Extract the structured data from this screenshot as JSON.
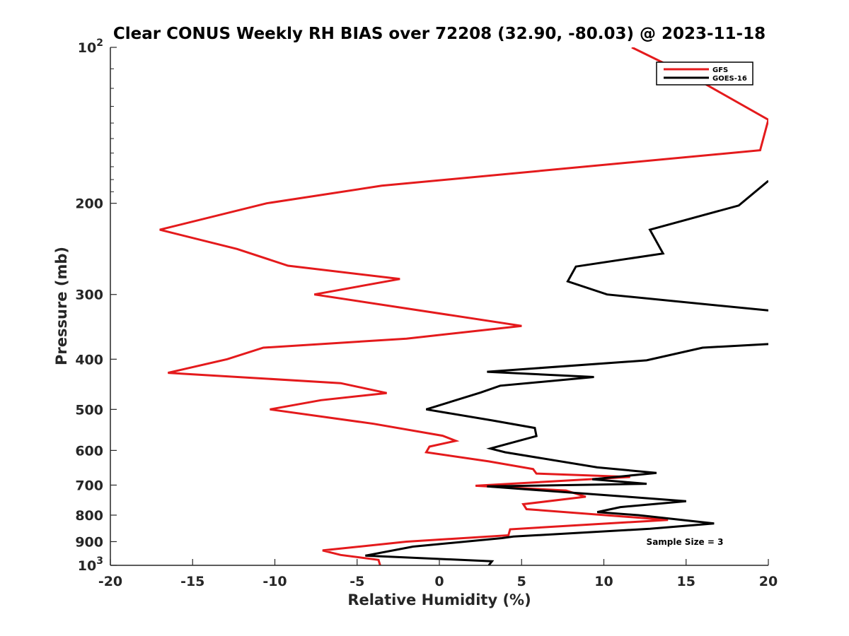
{
  "chart_data": {
    "type": "line",
    "title": "Clear CONUS Weekly RH BIAS over 72208 (32.90, -80.03) @ 2023-11-18",
    "xlabel": "Relative Humidity (%)",
    "ylabel": "Pressure (mb)",
    "xlim": [
      -20,
      20
    ],
    "ylim": [
      100,
      1000
    ],
    "y_scale": "log",
    "y_reversed": true,
    "x_ticks": [
      "-20",
      "-15",
      "-10",
      "-5",
      "0",
      "5",
      "10",
      "15",
      "20"
    ],
    "y_ticks": [
      {
        "value": 100,
        "label": "10",
        "sup": "2"
      },
      {
        "value": 200,
        "label": "200",
        "sup": ""
      },
      {
        "value": 300,
        "label": "300",
        "sup": ""
      },
      {
        "value": 400,
        "label": "400",
        "sup": ""
      },
      {
        "value": 500,
        "label": "500",
        "sup": ""
      },
      {
        "value": 600,
        "label": "600",
        "sup": ""
      },
      {
        "value": 700,
        "label": "700",
        "sup": ""
      },
      {
        "value": 800,
        "label": "800",
        "sup": ""
      },
      {
        "value": 900,
        "label": "900",
        "sup": ""
      },
      {
        "value": 1000,
        "label": "10",
        "sup": "3"
      }
    ],
    "grid": false,
    "legend_position": "top-right",
    "annotation": "Sample Size = 3",
    "series": [
      {
        "name": "GFS",
        "color": "#e41a1c",
        "points": [
          [
            11.7,
            100
          ],
          [
            15.6,
            115
          ],
          [
            20.0,
            138
          ],
          [
            19.5,
            158
          ],
          [
            -3.5,
            185
          ],
          [
            -10.5,
            200
          ],
          [
            -17.0,
            225
          ],
          [
            -12.3,
            245
          ],
          [
            -9.2,
            264
          ],
          [
            -2.4,
            280
          ],
          [
            -7.6,
            300
          ],
          [
            5.0,
            345
          ],
          [
            -2.0,
            365
          ],
          [
            -10.7,
            380
          ],
          [
            -12.9,
            400
          ],
          [
            -16.5,
            425
          ],
          [
            -6.0,
            445
          ],
          [
            -3.2,
            465
          ],
          [
            -7.2,
            480
          ],
          [
            -10.3,
            500
          ],
          [
            -4.0,
            533
          ],
          [
            0.2,
            562
          ],
          [
            1.0,
            575
          ],
          [
            -0.6,
            590
          ],
          [
            -0.8,
            605
          ],
          [
            3.0,
            630
          ],
          [
            5.7,
            652
          ],
          [
            5.9,
            665
          ],
          [
            11.6,
            675
          ],
          [
            2.2,
            702
          ],
          [
            7.7,
            717
          ],
          [
            8.9,
            737
          ],
          [
            5.1,
            762
          ],
          [
            5.3,
            779
          ],
          [
            13.9,
            817
          ],
          [
            4.3,
            852
          ],
          [
            4.2,
            875
          ],
          [
            -2.0,
            900
          ],
          [
            -7.1,
            936
          ],
          [
            -6.0,
            955
          ],
          [
            -3.7,
            976
          ],
          [
            -3.6,
            1000
          ]
        ]
      },
      {
        "name": "GOES-16",
        "color": "#000000",
        "points": [
          [
            20.0,
            181
          ],
          [
            18.2,
            202
          ],
          [
            12.8,
            225
          ],
          [
            13.6,
            250
          ],
          [
            8.3,
            265
          ],
          [
            7.8,
            283
          ],
          [
            10.2,
            300
          ],
          [
            20.0,
            322
          ],
          [
            null,
            338
          ],
          [
            20.0,
            374
          ],
          [
            16.0,
            380
          ],
          [
            12.6,
            402
          ],
          [
            2.9,
            423
          ],
          [
            9.4,
            433
          ],
          [
            3.7,
            450
          ],
          [
            2.5,
            464
          ],
          [
            -0.8,
            500
          ],
          [
            3.2,
            525
          ],
          [
            5.8,
            543
          ],
          [
            5.9,
            563
          ],
          [
            3.1,
            595
          ],
          [
            4.0,
            605
          ],
          [
            9.6,
            647
          ],
          [
            13.2,
            663
          ],
          [
            9.3,
            682
          ],
          [
            12.6,
            696
          ],
          [
            2.9,
            704
          ],
          [
            11.4,
            737
          ],
          [
            15.0,
            752
          ],
          [
            11.0,
            772
          ],
          [
            9.6,
            789
          ],
          [
            12.1,
            800
          ],
          [
            16.7,
            830
          ],
          [
            12.8,
            850
          ],
          [
            4.5,
            880
          ],
          [
            3.8,
            886
          ],
          [
            -1.6,
            920
          ],
          [
            -4.5,
            958
          ],
          [
            3.2,
            982
          ],
          [
            3.0,
            1000
          ]
        ]
      }
    ]
  }
}
